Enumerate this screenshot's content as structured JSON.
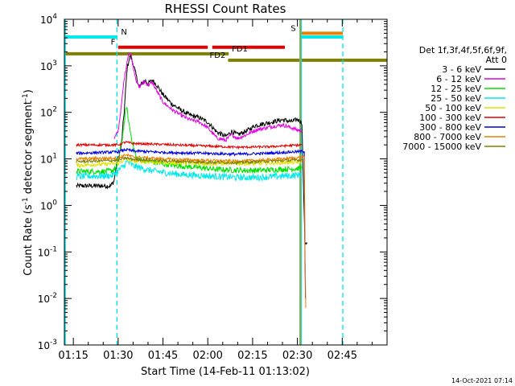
{
  "chart_data": {
    "type": "line",
    "title": "RHESSI Count Rates",
    "xlabel": "Start Time (14-Feb-11 01:13:02)",
    "ylabel": "Count Rate (s",
    "ylabel_sup": "-1",
    "ylabel_rest": " detector segment",
    "ylabel_sup2": "-1",
    "ylabel_end": ")",
    "xlim_min": [
      72,
      180
    ],
    "ylim_log10": [
      -3,
      4
    ],
    "x_ticks": [
      {
        "m": 75,
        "label": "01:15"
      },
      {
        "m": 90,
        "label": "01:30"
      },
      {
        "m": 105,
        "label": "01:45"
      },
      {
        "m": 120,
        "label": "02:00"
      },
      {
        "m": 135,
        "label": "02:15"
      },
      {
        "m": 150,
        "label": "02:30"
      },
      {
        "m": 165,
        "label": "02:45"
      }
    ],
    "y_ticks": [
      {
        "e": -3,
        "base": "10",
        "exp": "-3"
      },
      {
        "e": -2,
        "base": "10",
        "exp": "-2"
      },
      {
        "e": -1,
        "base": "10",
        "exp": "-1"
      },
      {
        "e": 0,
        "base": "10",
        "exp": "0"
      },
      {
        "e": 1,
        "base": "10",
        "exp": "1"
      },
      {
        "e": 2,
        "base": "10",
        "exp": "2"
      },
      {
        "e": 3,
        "base": "10",
        "exp": "3"
      },
      {
        "e": 4,
        "base": "10",
        "exp": "4"
      }
    ],
    "legend": {
      "placement": "right",
      "header1": "Det 1f,3f,4f,5f,6f,9f,",
      "header2": "Att 0",
      "entries": [
        {
          "label": "3 - 6 keV",
          "color": "#000000"
        },
        {
          "label": "6 - 12 keV",
          "color": "#e000e0"
        },
        {
          "label": "12 - 25 keV",
          "color": "#00e000"
        },
        {
          "label": "25 - 50 keV",
          "color": "#00e8e8"
        },
        {
          "label": "50 - 100 keV",
          "color": "#e0e000"
        },
        {
          "label": "100 - 300 keV",
          "color": "#e00000"
        },
        {
          "label": "300 - 800 keV",
          "color": "#0000e0"
        },
        {
          "label": "800 - 7000 keV",
          "color": "#e88000"
        },
        {
          "label": "7000 - 15000 keV",
          "color": "#808000"
        }
      ]
    },
    "series": [
      {
        "color": "#000000",
        "log_noise": 0.05,
        "points": [
          [
            76,
            0.42
          ],
          [
            87.5,
            0.42
          ],
          [
            88.6,
            0.52
          ],
          [
            89.5,
            0.88
          ],
          [
            91.0,
            1.25
          ],
          [
            92.0,
            2.0
          ],
          [
            93.0,
            2.95
          ],
          [
            94.0,
            3.22
          ],
          [
            95.0,
            3.05
          ],
          [
            96.0,
            2.8
          ],
          [
            97.0,
            2.55
          ],
          [
            98.0,
            2.62
          ],
          [
            99.0,
            2.69
          ],
          [
            100.0,
            2.62
          ],
          [
            101.5,
            2.69
          ],
          [
            103.0,
            2.58
          ],
          [
            105.0,
            2.38
          ],
          [
            108.0,
            2.18
          ],
          [
            111.0,
            2.05
          ],
          [
            114.0,
            1.94
          ],
          [
            117.0,
            1.89
          ],
          [
            120.0,
            1.79
          ],
          [
            123.0,
            1.58
          ],
          [
            126.0,
            1.48
          ],
          [
            128.0,
            1.59
          ],
          [
            130.0,
            1.52
          ],
          [
            133.0,
            1.6
          ],
          [
            136.0,
            1.72
          ],
          [
            139.0,
            1.76
          ],
          [
            142.0,
            1.8
          ],
          [
            145.0,
            1.84
          ],
          [
            148.0,
            1.8
          ],
          [
            150.0,
            1.85
          ],
          [
            151.5,
            1.78
          ],
          [
            152.5,
            -0.8
          ],
          [
            153.3,
            -0.8
          ]
        ]
      },
      {
        "color": "#e000e0",
        "log_noise": 0.04,
        "points": [
          [
            88.6,
            1.42
          ],
          [
            90.0,
            1.6
          ],
          [
            91.0,
            2.1
          ],
          [
            92.0,
            2.7
          ],
          [
            93.0,
            3.1
          ],
          [
            93.6,
            3.28
          ],
          [
            94.3,
            3.25
          ],
          [
            95.0,
            3.0
          ],
          [
            96.0,
            2.7
          ],
          [
            97.0,
            2.53
          ],
          [
            98.0,
            2.62
          ],
          [
            99.0,
            2.66
          ],
          [
            100.0,
            2.58
          ],
          [
            101.5,
            2.64
          ],
          [
            103.0,
            2.45
          ],
          [
            105.0,
            2.22
          ],
          [
            108.0,
            2.06
          ],
          [
            111.0,
            1.94
          ],
          [
            114.0,
            1.84
          ],
          [
            117.0,
            1.8
          ],
          [
            120.0,
            1.67
          ],
          [
            123.0,
            1.45
          ],
          [
            126.0,
            1.4
          ],
          [
            128.0,
            1.52
          ],
          [
            130.0,
            1.44
          ],
          [
            133.0,
            1.52
          ],
          [
            136.0,
            1.62
          ],
          [
            139.0,
            1.66
          ],
          [
            142.0,
            1.7
          ],
          [
            145.0,
            1.73
          ],
          [
            148.0,
            1.67
          ],
          [
            150.0,
            1.62
          ],
          [
            151.5,
            1.6
          ]
        ]
      },
      {
        "color": "#00e000",
        "log_noise": 0.06,
        "points": [
          [
            76,
            0.73
          ],
          [
            86.0,
            0.73
          ],
          [
            88.0,
            0.75
          ],
          [
            89.5,
            0.82
          ],
          [
            91.0,
            1.28
          ],
          [
            92.0,
            1.75
          ],
          [
            92.8,
            2.15
          ],
          [
            93.5,
            1.8
          ],
          [
            94.2,
            1.55
          ],
          [
            95.0,
            1.3
          ],
          [
            96.0,
            1.02
          ],
          [
            99.0,
            0.96
          ],
          [
            104.0,
            0.9
          ],
          [
            110.0,
            0.85
          ],
          [
            116.0,
            0.82
          ],
          [
            122.0,
            0.78
          ],
          [
            128.0,
            0.76
          ],
          [
            134.0,
            0.75
          ],
          [
            140.0,
            0.76
          ],
          [
            146.0,
            0.78
          ],
          [
            151.5,
            0.8
          ]
        ]
      },
      {
        "color": "#00e8e8",
        "log_noise": 0.07,
        "points": [
          [
            76,
            0.62
          ],
          [
            88.0,
            0.64
          ],
          [
            90.0,
            0.75
          ],
          [
            92.0,
            0.85
          ],
          [
            93.0,
            0.95
          ],
          [
            95.0,
            0.85
          ],
          [
            100.0,
            0.76
          ],
          [
            106.0,
            0.7
          ],
          [
            112.0,
            0.66
          ],
          [
            118.0,
            0.64
          ],
          [
            124.0,
            0.62
          ],
          [
            130.0,
            0.6
          ],
          [
            136.0,
            0.6
          ],
          [
            142.0,
            0.62
          ],
          [
            148.0,
            0.64
          ],
          [
            151.5,
            0.66
          ]
        ]
      },
      {
        "color": "#e0e000",
        "log_noise": 0.04,
        "points": [
          [
            76,
            0.86
          ],
          [
            90.0,
            0.9
          ],
          [
            92.5,
            1.0
          ],
          [
            95.0,
            0.95
          ],
          [
            105.0,
            0.92
          ],
          [
            120.0,
            0.9
          ],
          [
            135.0,
            0.9
          ],
          [
            151.5,
            0.93
          ]
        ]
      },
      {
        "color": "#e00000",
        "log_noise": 0.025,
        "points": [
          [
            76,
            1.3
          ],
          [
            90.0,
            1.3
          ],
          [
            92.5,
            1.36
          ],
          [
            95.0,
            1.33
          ],
          [
            105.0,
            1.31
          ],
          [
            118.0,
            1.28
          ],
          [
            130.0,
            1.25
          ],
          [
            140.0,
            1.26
          ],
          [
            151.5,
            1.3
          ]
        ]
      },
      {
        "color": "#0000e0",
        "log_noise": 0.03,
        "points": [
          [
            76,
            1.12
          ],
          [
            90.0,
            1.15
          ],
          [
            92.5,
            1.2
          ],
          [
            95.0,
            1.17
          ],
          [
            105.0,
            1.14
          ],
          [
            118.0,
            1.12
          ],
          [
            130.0,
            1.1
          ],
          [
            140.0,
            1.12
          ],
          [
            151.5,
            1.16
          ],
          [
            152.3,
            1.16
          ],
          [
            152.5,
            -1.0
          ],
          [
            152.7,
            -2.0
          ]
        ]
      },
      {
        "color": "#e88000",
        "log_noise": 0.03,
        "points": [
          [
            76,
            1.0
          ],
          [
            90.0,
            1.02
          ],
          [
            92.5,
            1.09
          ],
          [
            95.0,
            1.04
          ],
          [
            105.0,
            1.0
          ],
          [
            118.0,
            0.97
          ],
          [
            130.0,
            0.95
          ],
          [
            140.0,
            0.98
          ],
          [
            151.5,
            1.03
          ],
          [
            152.3,
            1.05
          ],
          [
            152.5,
            -0.8
          ],
          [
            152.8,
            -2.2
          ]
        ]
      },
      {
        "color": "#808000",
        "log_noise": 0.03,
        "points": [
          [
            76,
            0.94
          ],
          [
            90.0,
            0.97
          ],
          [
            92.5,
            1.02
          ],
          [
            95.0,
            0.99
          ],
          [
            105.0,
            0.96
          ],
          [
            118.0,
            0.93
          ],
          [
            130.0,
            0.92
          ],
          [
            140.0,
            0.95
          ],
          [
            151.5,
            0.98
          ]
        ]
      }
    ],
    "flag_bars": [
      {
        "label": "N",
        "label_at": 90.4,
        "label_side": "right",
        "e": 3.62,
        "color": "#00e8e8",
        "segments": [
          [
            72,
            89.6
          ],
          [
            151.0,
            165.2
          ]
        ],
        "width": 4
      },
      {
        "label": "F",
        "label_at": 89.6,
        "label_side": "left",
        "e": 3.4,
        "color": "#e00000",
        "segments": [
          [
            90.0,
            120.0
          ],
          [
            121.5,
            145.8
          ]
        ],
        "width": 4
      },
      {
        "label": "FD1",
        "label_at": 127.5,
        "label_side": "right",
        "e": 3.26,
        "color": "#808000",
        "segments": [
          [
            72,
            127.0
          ]
        ],
        "width": 4
      },
      {
        "label": "FD2",
        "label_at": 126.5,
        "label_side": "left",
        "e": 3.12,
        "color": "#808000",
        "segments": [
          [
            126.8,
            180
          ]
        ],
        "width": 4
      },
      {
        "label": "S",
        "label_at": 150.0,
        "label_side": "left",
        "e": 3.7,
        "color": "#e88000",
        "segments": [
          [
            151.0,
            165.2
          ]
        ],
        "width": 4
      }
    ],
    "vlines": [
      {
        "m": 72.3,
        "color": "#00e8e8",
        "dash": false
      },
      {
        "m": 89.6,
        "color": "#00e8e8",
        "dash": true
      },
      {
        "m": 150.8,
        "color": "#00e8e8",
        "dash": false
      },
      {
        "m": 151.3,
        "color": "#00e8e8",
        "dash": false
      },
      {
        "m": 165.2,
        "color": "#00e8e8",
        "dash": true
      },
      {
        "m": 151.05,
        "color": "#e88000",
        "dash": false
      }
    ],
    "timestamp": "14-Oct-2021 07:14"
  }
}
